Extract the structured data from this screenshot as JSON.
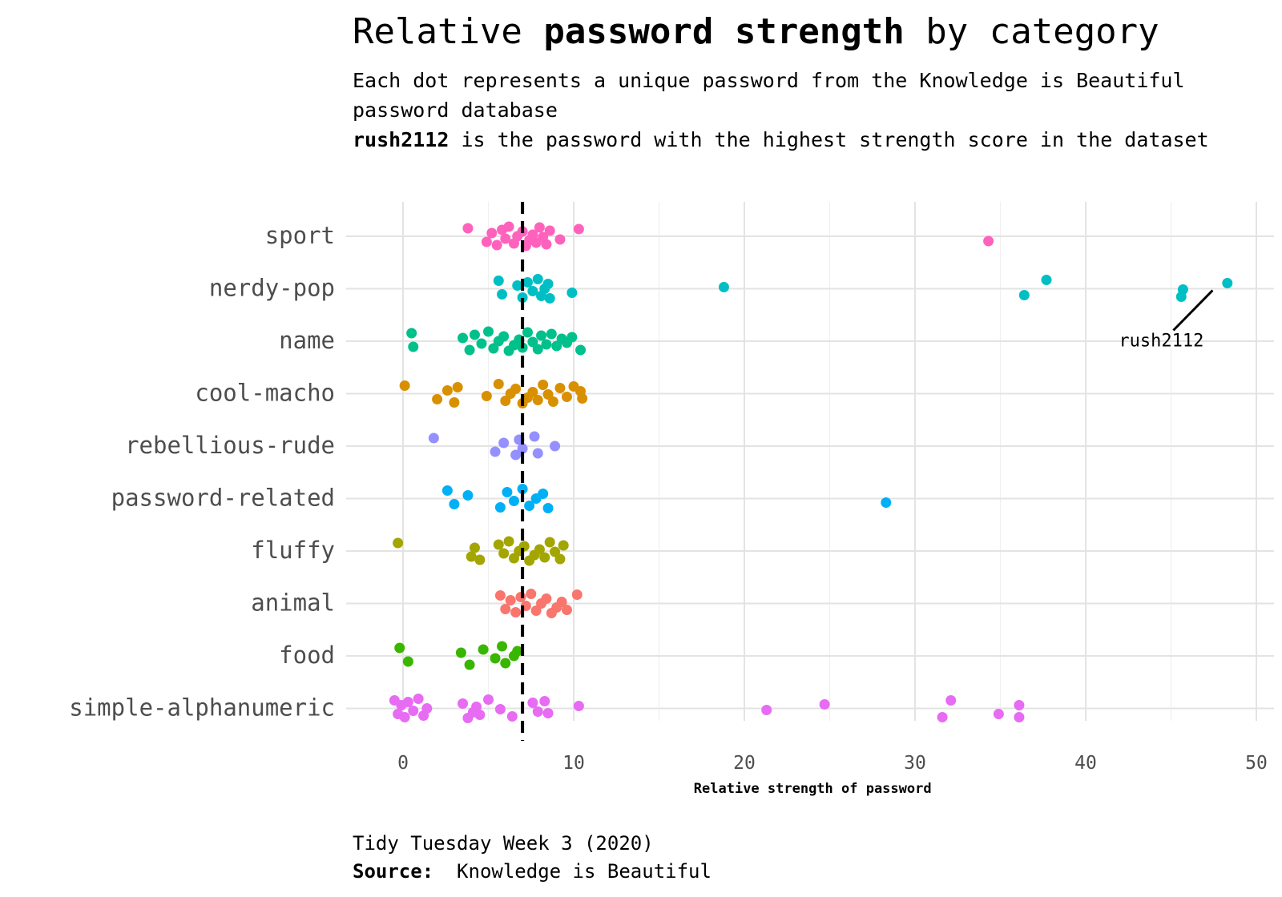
{
  "titles": {
    "title_pre": "Relative ",
    "title_bold": "password strength",
    "title_post": " by category",
    "subtitle_line1": "Each dot represents a unique password from the Knowledge is Beautiful password database",
    "subtitle_bold": "rush2112",
    "subtitle_line2": " is the password with the highest strength score in the dataset",
    "caption_line1": "Tidy Tuesday Week 3 (2020)",
    "caption_source_label": "Source:",
    "caption_source_text": "  Knowledge is Beautiful"
  },
  "chart_data": {
    "type": "scatter",
    "xlabel": "Relative strength of password",
    "ylabel": "",
    "xlim": [
      -3,
      51
    ],
    "x_ticks": [
      0,
      10,
      20,
      30,
      40,
      50
    ],
    "grid": true,
    "legend": "none",
    "reference_line": {
      "x": 7,
      "style": "dashed",
      "color": "#000000"
    },
    "annotation": {
      "text": "rush2112",
      "point": {
        "category": "nerdy-pop",
        "x": 48
      }
    },
    "categories": [
      "sport",
      "nerdy-pop",
      "name",
      "cool-macho",
      "rebellious-rude",
      "password-related",
      "fluffy",
      "animal",
      "food",
      "simple-alphanumeric"
    ],
    "series": [
      {
        "category": "sport",
        "color": "#FF62BC",
        "x": [
          3.8,
          4.9,
          5.2,
          5.5,
          5.8,
          6.0,
          6.2,
          6.5,
          6.7,
          7.0,
          7.2,
          7.4,
          7.6,
          7.8,
          8.0,
          8.2,
          8.4,
          8.6,
          9.2,
          10.3,
          34.3
        ]
      },
      {
        "category": "nerdy-pop",
        "color": "#00BFC4",
        "x": [
          5.6,
          5.8,
          6.7,
          7.0,
          7.3,
          7.6,
          7.9,
          8.1,
          8.3,
          8.5,
          8.6,
          9.9,
          18.8,
          36.4,
          37.7,
          45.7,
          45.6,
          48.3
        ]
      },
      {
        "category": "name",
        "color": "#00C08B",
        "x": [
          0.5,
          0.6,
          3.5,
          3.9,
          4.2,
          4.6,
          5.0,
          5.3,
          5.6,
          5.9,
          6.2,
          6.5,
          6.8,
          7.0,
          7.3,
          7.6,
          7.9,
          8.1,
          8.4,
          8.7,
          9.0,
          9.3,
          9.6,
          9.9,
          10.4
        ]
      },
      {
        "category": "cool-macho",
        "color": "#D89000",
        "x": [
          0.1,
          2.0,
          2.6,
          3.0,
          3.2,
          4.9,
          5.6,
          6.0,
          6.3,
          6.6,
          7.0,
          7.3,
          7.6,
          7.9,
          8.2,
          8.5,
          8.8,
          9.2,
          9.6,
          10.0,
          10.5,
          10.4
        ]
      },
      {
        "category": "rebellious-rude",
        "color": "#9590FF",
        "x": [
          1.8,
          5.4,
          5.9,
          6.6,
          6.8,
          7.0,
          7.7,
          7.9,
          8.9
        ]
      },
      {
        "category": "password-related",
        "color": "#00B0F6",
        "x": [
          2.6,
          3.0,
          3.8,
          5.7,
          6.1,
          6.5,
          7.0,
          7.4,
          7.8,
          8.2,
          8.5,
          28.3
        ]
      },
      {
        "category": "fluffy",
        "color": "#A3A500",
        "x": [
          -0.3,
          4.0,
          4.2,
          4.5,
          5.6,
          5.9,
          6.2,
          6.5,
          6.8,
          7.1,
          7.4,
          7.7,
          8.0,
          8.3,
          8.6,
          8.9,
          9.2,
          9.4
        ]
      },
      {
        "category": "animal",
        "color": "#F8766D",
        "x": [
          5.7,
          6.0,
          6.3,
          6.6,
          6.9,
          7.2,
          7.5,
          7.8,
          8.1,
          8.4,
          8.7,
          9.0,
          9.3,
          9.6,
          10.2
        ]
      },
      {
        "category": "food",
        "color": "#39B600",
        "x": [
          -0.2,
          0.3,
          3.4,
          3.9,
          4.7,
          5.4,
          5.8,
          6.0,
          6.5,
          6.7
        ]
      },
      {
        "category": "simple-alphanumeric",
        "color": "#E76BF3",
        "x": [
          -0.5,
          -0.3,
          -0.1,
          0.1,
          0.3,
          0.6,
          0.9,
          1.2,
          1.4,
          3.5,
          3.8,
          4.1,
          4.3,
          4.5,
          5.0,
          5.7,
          6.4,
          7.6,
          7.9,
          8.3,
          8.5,
          10.3,
          21.3,
          24.7,
          31.6,
          32.1,
          34.9,
          36.1,
          36.1
        ]
      }
    ]
  }
}
